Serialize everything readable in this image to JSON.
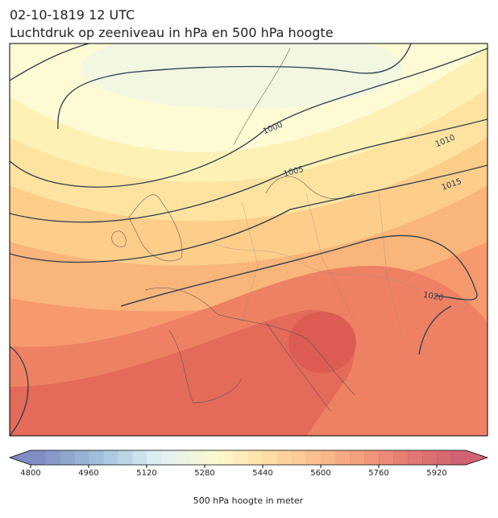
{
  "header": {
    "title_lines": [
      "02-10-1819 12 UTC",
      "Luchtdruk op zeeniveau in hPa en 500 hPa hoogte"
    ]
  },
  "map": {
    "contour_labels": [
      "1000",
      "1005",
      "1010",
      "1015",
      "1020"
    ]
  },
  "colorbar": {
    "label": "500 hPa hoogte in meter",
    "range": [
      4800,
      6000
    ],
    "step": 40,
    "ticks": [
      4800,
      4960,
      5120,
      5280,
      5440,
      5600,
      5760,
      5920
    ],
    "colors": [
      "#6a78b8",
      "#8fb6d6",
      "#d9eef3",
      "#fdf8c4",
      "#fdd28c",
      "#f7a070",
      "#e46a5a",
      "#c9465a"
    ]
  }
}
